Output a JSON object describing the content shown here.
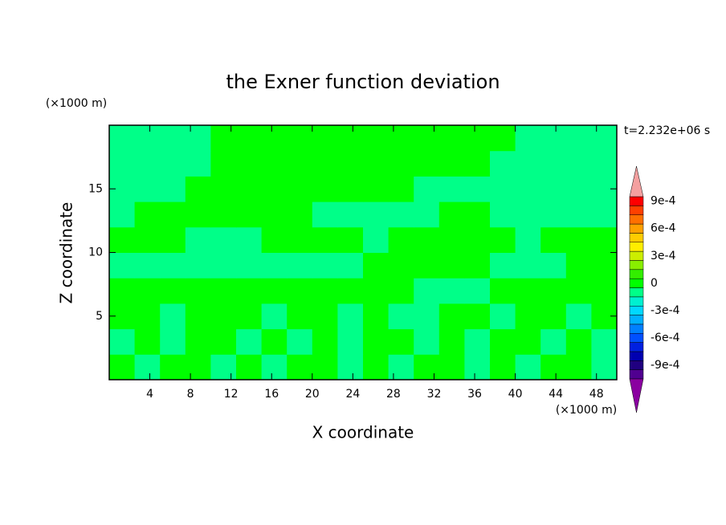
{
  "chart_data": {
    "type": "contour",
    "title": "the Exner function deviation",
    "xlabel": "X coordinate",
    "ylabel": "Z coordinate",
    "x_unit": "(×1000 m)",
    "y_unit": "(×1000 m)",
    "time_label": "t=2.232e+06 s",
    "xlim": [
      0,
      50
    ],
    "xticks": [
      4,
      8,
      12,
      16,
      20,
      24,
      28,
      32,
      36,
      40,
      44,
      48
    ],
    "ylim": [
      0,
      20
    ],
    "yticks": [
      5,
      10,
      15
    ],
    "field": [
      [
        5e-05,
        -5e-05,
        5e-05,
        5e-05,
        -5e-05,
        5e-05,
        -5e-05,
        5e-05,
        5e-05,
        -5e-05,
        5e-05,
        -5e-05,
        5e-05,
        5e-05,
        -5e-05,
        5e-05,
        -5e-05,
        5e-05,
        5e-05,
        -5e-05
      ],
      [
        -5e-05,
        5e-05,
        -5e-05,
        5e-05,
        5e-05,
        -5e-05,
        5e-05,
        -5e-05,
        5e-05,
        -5e-05,
        5e-05,
        5e-05,
        -5e-05,
        5e-05,
        -5e-05,
        5e-05,
        5e-05,
        -5e-05,
        5e-05,
        -5e-05
      ],
      [
        5e-05,
        5e-05,
        -5e-05,
        5e-05,
        5e-05,
        5e-05,
        -5e-05,
        5e-05,
        5e-05,
        -5e-05,
        5e-05,
        -5e-05,
        -5e-05,
        5e-05,
        5e-05,
        -5e-05,
        5e-05,
        5e-05,
        -5e-05,
        5e-05
      ],
      [
        5e-05,
        5e-05,
        5e-05,
        5e-05,
        5e-05,
        5e-05,
        5e-05,
        5e-05,
        5e-05,
        5e-05,
        5e-05,
        5e-05,
        -5e-05,
        -5e-05,
        -5e-05,
        5e-05,
        5e-05,
        5e-05,
        5e-05,
        5e-05
      ],
      [
        -5e-05,
        -5e-05,
        -5e-05,
        -5e-05,
        -5e-05,
        -5e-05,
        -5e-05,
        -5e-05,
        -5e-05,
        -5e-05,
        5e-05,
        5e-05,
        5e-05,
        5e-05,
        5e-05,
        -5e-05,
        -5e-05,
        -5e-05,
        5e-05,
        5e-05
      ],
      [
        5e-05,
        5e-05,
        5e-05,
        -5e-05,
        -5e-05,
        -5e-05,
        5e-05,
        5e-05,
        5e-05,
        5e-05,
        -5e-05,
        5e-05,
        5e-05,
        5e-05,
        5e-05,
        5e-05,
        -5e-05,
        5e-05,
        5e-05,
        5e-05
      ],
      [
        -5e-05,
        5e-05,
        5e-05,
        5e-05,
        5e-05,
        5e-05,
        5e-05,
        5e-05,
        -5e-05,
        -5e-05,
        -5e-05,
        -5e-05,
        -5e-05,
        5e-05,
        5e-05,
        -5e-05,
        -5e-05,
        -5e-05,
        -5e-05,
        -5e-05
      ],
      [
        -5e-05,
        -5e-05,
        -5e-05,
        5e-05,
        5e-05,
        5e-05,
        5e-05,
        5e-05,
        5e-05,
        5e-05,
        5e-05,
        5e-05,
        -5e-05,
        -5e-05,
        -5e-05,
        -5e-05,
        -5e-05,
        -5e-05,
        -5e-05,
        -5e-05
      ],
      [
        -5e-05,
        -5e-05,
        -5e-05,
        -5e-05,
        5e-05,
        5e-05,
        5e-05,
        5e-05,
        5e-05,
        5e-05,
        5e-05,
        5e-05,
        5e-05,
        5e-05,
        5e-05,
        -5e-05,
        -5e-05,
        -5e-05,
        -5e-05,
        -5e-05
      ],
      [
        -5e-05,
        -5e-05,
        -5e-05,
        -5e-05,
        5e-05,
        5e-05,
        5e-05,
        5e-05,
        5e-05,
        5e-05,
        5e-05,
        5e-05,
        5e-05,
        5e-05,
        5e-05,
        5e-05,
        -5e-05,
        -5e-05,
        -5e-05,
        -5e-05
      ]
    ],
    "colorbar": {
      "lim": [
        -0.001,
        0.001
      ],
      "ticks": [
        {
          "value": 0.0009,
          "label": "9e-4"
        },
        {
          "value": 0.0006,
          "label": "6e-4"
        },
        {
          "value": 0.0003,
          "label": "3e-4"
        },
        0,
        {
          "value": -0.0003,
          "label": "-3e-4"
        },
        {
          "value": -0.0006,
          "label": "-6e-4"
        },
        {
          "value": -0.0009,
          "label": "-9e-4"
        }
      ],
      "colors": [
        "#500090",
        "#200080",
        "#0000b0",
        "#0020e0",
        "#0050ff",
        "#0080ff",
        "#00b0ff",
        "#00d8ff",
        "#00f0d0",
        "#00ff88",
        "#00ff00",
        "#33ee00",
        "#88ee00",
        "#ccee00",
        "#ffee00",
        "#ffcc00",
        "#ffa000",
        "#ff7000",
        "#ff4000",
        "#ff0000"
      ],
      "under_color": "#8a00a0",
      "over_color": "#f4a0a0"
    }
  }
}
